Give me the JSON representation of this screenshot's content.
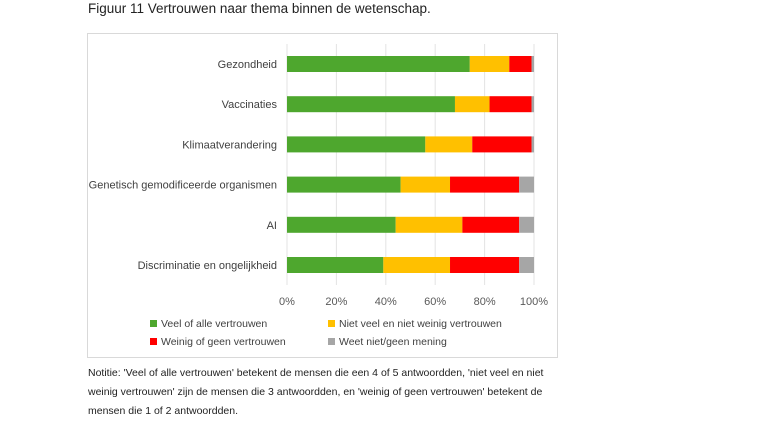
{
  "title": "Figuur 11  Vertrouwen naar thema binnen de wetenschap.",
  "note": "Notitie: 'Veel of alle vertrouwen' betekent de mensen die een 4 of 5 antwoordden, 'niet veel en niet weinig vertrouwen' zijn de mensen die 3 antwoordden, en 'weinig of geen vertrouwen' betekent de mensen die 1 of 2 antwoordden.",
  "chart_data": {
    "type": "bar",
    "orientation": "horizontal",
    "stacked": true,
    "categories": [
      "Gezondheid",
      "Vaccinaties",
      "Klimaatverandering",
      "Genetisch gemodificeerde organismen",
      "AI",
      "Discriminatie en ongelijkheid"
    ],
    "series": [
      {
        "name": "Veel of alle vertrouwen",
        "color": "#4ea72e",
        "values": [
          74,
          68,
          56,
          46,
          44,
          39
        ]
      },
      {
        "name": "Niet veel en niet weinig vertrouwen",
        "color": "#ffc000",
        "values": [
          16,
          14,
          19,
          20,
          27,
          27
        ]
      },
      {
        "name": "Weinig of geen vertrouwen",
        "color": "#ff0000",
        "values": [
          9,
          17,
          24,
          28,
          23,
          28
        ]
      },
      {
        "name": "Weet niet/geen mening",
        "color": "#a6a6a6",
        "values": [
          1,
          1,
          1,
          6,
          6,
          6
        ]
      }
    ],
    "xlim": [
      0,
      100
    ],
    "xticks": [
      "0%",
      "20%",
      "40%",
      "60%",
      "80%",
      "100%"
    ],
    "grid": true,
    "legend": "bottom"
  }
}
